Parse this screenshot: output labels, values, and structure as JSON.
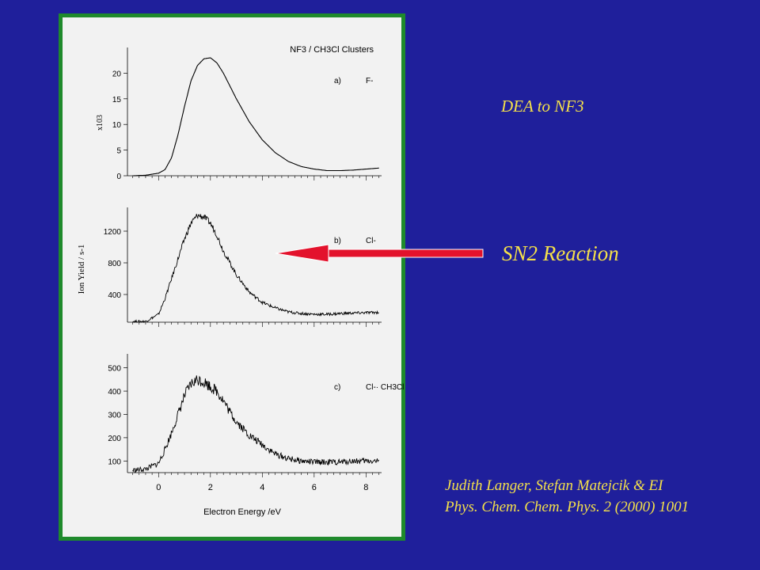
{
  "figure": {
    "header": "NF3 / CH3Cl Clusters",
    "x_axis_label": "Electron Energy /eV",
    "y_axis_label": "Ion Yield / s-1",
    "x_tick_labels": [
      "0",
      "2",
      "4",
      "6",
      "8"
    ],
    "panels": [
      {
        "label": "a)",
        "ion": "F-",
        "multiplier_label": "x103",
        "y_tick_labels": [
          "0",
          "5",
          "10",
          "15",
          "20"
        ]
      },
      {
        "label": "b)",
        "ion": "Cl-",
        "y_tick_labels": [
          "400",
          "800",
          "1200"
        ]
      },
      {
        "label": "c)",
        "ion": "Cl-· CH3Cl",
        "y_tick_labels": [
          "100",
          "200",
          "300",
          "400",
          "500"
        ]
      }
    ]
  },
  "annotations": {
    "dea_title": "DEA to NF3",
    "reaction_label": "SN2 Reaction",
    "citation_line1": "Judith Langer, Stefan Matejcik & EI",
    "citation_line2": "Phys. Chem. Chem. Phys. 2 (2000) 1001"
  },
  "colors": {
    "background": "#1f1f9b",
    "frame_border": "#1f8a2c",
    "panel_background": "#f2f2f2",
    "annotation_text": "#f4e04a",
    "arrow": "#e3122c"
  },
  "chart_data": [
    {
      "type": "line",
      "panel": "a)",
      "series": [
        {
          "name": "F-",
          "x": [
            -1.0,
            -0.5,
            0,
            0.25,
            0.5,
            0.75,
            1.0,
            1.25,
            1.5,
            1.75,
            2.0,
            2.25,
            2.5,
            2.75,
            3.0,
            3.5,
            4.0,
            4.5,
            5.0,
            5.5,
            6.0,
            6.5,
            7.0,
            7.5,
            8.0,
            8.5
          ],
          "y": [
            0.0,
            0.1,
            0.5,
            1.2,
            3.5,
            8.0,
            13.5,
            18.5,
            21.5,
            22.8,
            23.0,
            22.0,
            20.0,
            17.5,
            15.0,
            10.5,
            7.0,
            4.5,
            2.8,
            1.8,
            1.3,
            1.0,
            1.0,
            1.1,
            1.3,
            1.5
          ]
        }
      ],
      "xlim": [
        -1.2,
        8.6
      ],
      "ylim": [
        0,
        25
      ],
      "y_unit": "x10^3 s-1"
    },
    {
      "type": "line",
      "panel": "b)",
      "series": [
        {
          "name": "Cl-",
          "x": [
            -1.0,
            -0.5,
            0,
            0.25,
            0.5,
            0.75,
            1.0,
            1.25,
            1.5,
            1.75,
            2.0,
            2.25,
            2.5,
            2.75,
            3.0,
            3.5,
            4.0,
            4.5,
            5.0,
            5.5,
            6.0,
            6.5,
            7.0,
            7.5,
            8.0,
            8.5
          ],
          "y": [
            60,
            60,
            150,
            350,
            600,
            850,
            1100,
            1300,
            1400,
            1380,
            1300,
            1150,
            950,
            800,
            650,
            430,
            300,
            230,
            180,
            160,
            150,
            150,
            160,
            165,
            170,
            175
          ]
        }
      ],
      "xlim": [
        -1.2,
        8.6
      ],
      "ylim": [
        50,
        1500
      ]
    },
    {
      "type": "line",
      "panel": "c)",
      "series": [
        {
          "name": "Cl-· CH3Cl",
          "x": [
            -1.0,
            -0.5,
            0,
            0.25,
            0.5,
            0.75,
            1.0,
            1.25,
            1.5,
            1.75,
            2.0,
            2.25,
            2.5,
            2.75,
            3.0,
            3.5,
            4.0,
            4.5,
            5.0,
            5.5,
            6.0,
            6.5,
            7.0,
            7.5,
            8.0,
            8.5
          ],
          "y": [
            60,
            65,
            90,
            150,
            220,
            300,
            380,
            430,
            450,
            440,
            420,
            400,
            360,
            310,
            270,
            210,
            170,
            130,
            110,
            100,
            95,
            95,
            95,
            100,
            100,
            100
          ]
        }
      ],
      "xlim": [
        -1.2,
        8.6
      ],
      "ylim": [
        50,
        560
      ]
    }
  ]
}
